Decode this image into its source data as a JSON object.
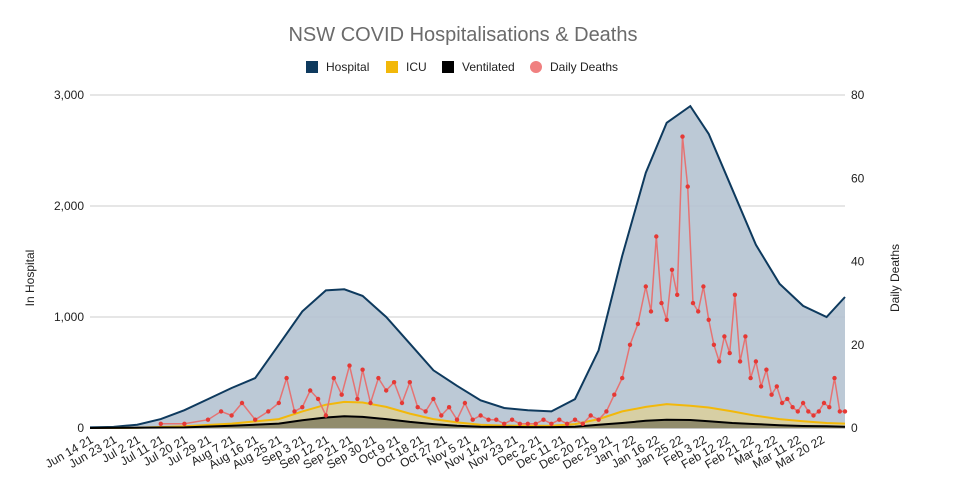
{
  "chart_data": {
    "type": "area",
    "title": "NSW COVID Hospitalisations & Deaths",
    "ylabel": "In Hospital",
    "y2label": "Daily Deaths",
    "ylim": [
      0,
      3000
    ],
    "y2lim": [
      0,
      80
    ],
    "yticks": [
      "0",
      "1,000",
      "2,000",
      "3,000"
    ],
    "y2ticks": [
      "0",
      "20",
      "40",
      "60",
      "80"
    ],
    "legend": [
      {
        "name": "Hospital",
        "color": "#0e3a5e",
        "marker": "square"
      },
      {
        "name": "ICU",
        "color": "#f2b80a",
        "marker": "square"
      },
      {
        "name": "Ventilated",
        "color": "#000000",
        "marker": "square"
      },
      {
        "name": "Daily Deaths",
        "color": "#f08080",
        "marker": "circle"
      }
    ],
    "xticks": [
      "Jun 14 21",
      "Jun 23 21",
      "Jul 2 21",
      "Jul 11 21",
      "Jul 20 21",
      "Jul 29 21",
      "Aug 7 21",
      "Aug 16 21",
      "Aug 25 21",
      "Sep 3 21",
      "Sep 12 21",
      "Sep 21 21",
      "Sep 30 21",
      "Oct 9 21",
      "Oct 18 21",
      "Oct 27 21",
      "Nov 5 21",
      "Nov 14 21",
      "Nov 23 21",
      "Dec 2 21",
      "Dec 11 21",
      "Dec 20 21",
      "Dec 29 21",
      "Jan 7 22",
      "Jan 16 22",
      "Jan 25 22",
      "Feb 3 22",
      "Feb 12 22",
      "Feb 21 22",
      "Mar 2 22",
      "Mar 11 22",
      "Mar 20 22"
    ],
    "series": [
      {
        "name": "Hospital",
        "color": "#0e3a5e",
        "fill": "#b5c3d1",
        "points": [
          [
            0,
            5
          ],
          [
            9,
            10
          ],
          [
            18,
            30
          ],
          [
            27,
            80
          ],
          [
            36,
            160
          ],
          [
            45,
            260
          ],
          [
            54,
            360
          ],
          [
            63,
            450
          ],
          [
            72,
            750
          ],
          [
            81,
            1050
          ],
          [
            90,
            1240
          ],
          [
            97,
            1250
          ],
          [
            104,
            1190
          ],
          [
            113,
            1000
          ],
          [
            122,
            760
          ],
          [
            131,
            520
          ],
          [
            140,
            380
          ],
          [
            149,
            250
          ],
          [
            158,
            180
          ],
          [
            167,
            160
          ],
          [
            176,
            150
          ],
          [
            185,
            260
          ],
          [
            194,
            700
          ],
          [
            203,
            1550
          ],
          [
            212,
            2300
          ],
          [
            220,
            2750
          ],
          [
            229,
            2900
          ],
          [
            236,
            2650
          ],
          [
            245,
            2150
          ],
          [
            254,
            1650
          ],
          [
            263,
            1300
          ],
          [
            272,
            1100
          ],
          [
            281,
            1000
          ],
          [
            288,
            1180
          ]
        ]
      },
      {
        "name": "ICU",
        "color": "#f2b80a",
        "fill": "#d9cf9e",
        "points": [
          [
            0,
            0
          ],
          [
            18,
            2
          ],
          [
            36,
            15
          ],
          [
            54,
            40
          ],
          [
            72,
            80
          ],
          [
            81,
            150
          ],
          [
            90,
            210
          ],
          [
            97,
            235
          ],
          [
            104,
            230
          ],
          [
            113,
            190
          ],
          [
            122,
            130
          ],
          [
            131,
            80
          ],
          [
            140,
            50
          ],
          [
            149,
            30
          ],
          [
            158,
            22
          ],
          [
            167,
            20
          ],
          [
            176,
            20
          ],
          [
            185,
            35
          ],
          [
            194,
            80
          ],
          [
            203,
            150
          ],
          [
            212,
            190
          ],
          [
            220,
            215
          ],
          [
            229,
            200
          ],
          [
            236,
            185
          ],
          [
            245,
            150
          ],
          [
            254,
            110
          ],
          [
            263,
            80
          ],
          [
            272,
            60
          ],
          [
            281,
            45
          ],
          [
            288,
            40
          ]
        ]
      },
      {
        "name": "Ventilated",
        "color": "#000000",
        "fill": "#8a8466",
        "points": [
          [
            0,
            0
          ],
          [
            36,
            5
          ],
          [
            54,
            20
          ],
          [
            72,
            40
          ],
          [
            81,
            70
          ],
          [
            90,
            95
          ],
          [
            97,
            105
          ],
          [
            104,
            100
          ],
          [
            113,
            80
          ],
          [
            122,
            55
          ],
          [
            131,
            35
          ],
          [
            140,
            20
          ],
          [
            149,
            12
          ],
          [
            158,
            10
          ],
          [
            167,
            8
          ],
          [
            176,
            8
          ],
          [
            185,
            12
          ],
          [
            194,
            30
          ],
          [
            203,
            45
          ],
          [
            212,
            65
          ],
          [
            220,
            75
          ],
          [
            229,
            72
          ],
          [
            236,
            60
          ],
          [
            245,
            45
          ],
          [
            254,
            35
          ],
          [
            263,
            25
          ],
          [
            272,
            18
          ],
          [
            281,
            15
          ],
          [
            288,
            12
          ]
        ]
      },
      {
        "name": "Daily Deaths",
        "color": "#e05050",
        "points": [
          [
            27,
            1
          ],
          [
            36,
            1
          ],
          [
            45,
            2
          ],
          [
            50,
            4
          ],
          [
            54,
            3
          ],
          [
            58,
            6
          ],
          [
            63,
            2
          ],
          [
            68,
            4
          ],
          [
            72,
            6
          ],
          [
            75,
            12
          ],
          [
            78,
            4
          ],
          [
            81,
            5
          ],
          [
            84,
            9
          ],
          [
            87,
            7
          ],
          [
            90,
            3
          ],
          [
            93,
            12
          ],
          [
            96,
            8
          ],
          [
            99,
            15
          ],
          [
            102,
            7
          ],
          [
            104,
            14
          ],
          [
            107,
            6
          ],
          [
            110,
            12
          ],
          [
            113,
            9
          ],
          [
            116,
            11
          ],
          [
            119,
            6
          ],
          [
            122,
            11
          ],
          [
            125,
            5
          ],
          [
            128,
            4
          ],
          [
            131,
            7
          ],
          [
            134,
            3
          ],
          [
            137,
            5
          ],
          [
            140,
            2
          ],
          [
            143,
            6
          ],
          [
            146,
            2
          ],
          [
            149,
            3
          ],
          [
            152,
            2
          ],
          [
            155,
            2
          ],
          [
            158,
            1
          ],
          [
            161,
            2
          ],
          [
            164,
            1
          ],
          [
            167,
            1
          ],
          [
            170,
            1
          ],
          [
            173,
            2
          ],
          [
            176,
            1
          ],
          [
            179,
            2
          ],
          [
            182,
            1
          ],
          [
            185,
            2
          ],
          [
            188,
            1
          ],
          [
            191,
            3
          ],
          [
            194,
            2
          ],
          [
            197,
            4
          ],
          [
            200,
            8
          ],
          [
            203,
            12
          ],
          [
            206,
            20
          ],
          [
            209,
            25
          ],
          [
            212,
            34
          ],
          [
            214,
            28
          ],
          [
            216,
            46
          ],
          [
            218,
            30
          ],
          [
            220,
            26
          ],
          [
            222,
            38
          ],
          [
            224,
            32
          ],
          [
            226,
            70
          ],
          [
            228,
            58
          ],
          [
            230,
            30
          ],
          [
            232,
            28
          ],
          [
            234,
            34
          ],
          [
            236,
            26
          ],
          [
            238,
            20
          ],
          [
            240,
            16
          ],
          [
            242,
            22
          ],
          [
            244,
            18
          ],
          [
            246,
            32
          ],
          [
            248,
            16
          ],
          [
            250,
            22
          ],
          [
            252,
            12
          ],
          [
            254,
            16
          ],
          [
            256,
            10
          ],
          [
            258,
            14
          ],
          [
            260,
            8
          ],
          [
            262,
            10
          ],
          [
            264,
            6
          ],
          [
            266,
            7
          ],
          [
            268,
            5
          ],
          [
            270,
            4
          ],
          [
            272,
            6
          ],
          [
            274,
            4
          ],
          [
            276,
            3
          ],
          [
            278,
            4
          ],
          [
            280,
            6
          ],
          [
            282,
            5
          ],
          [
            284,
            12
          ],
          [
            286,
            4
          ],
          [
            288,
            4
          ]
        ]
      }
    ]
  }
}
